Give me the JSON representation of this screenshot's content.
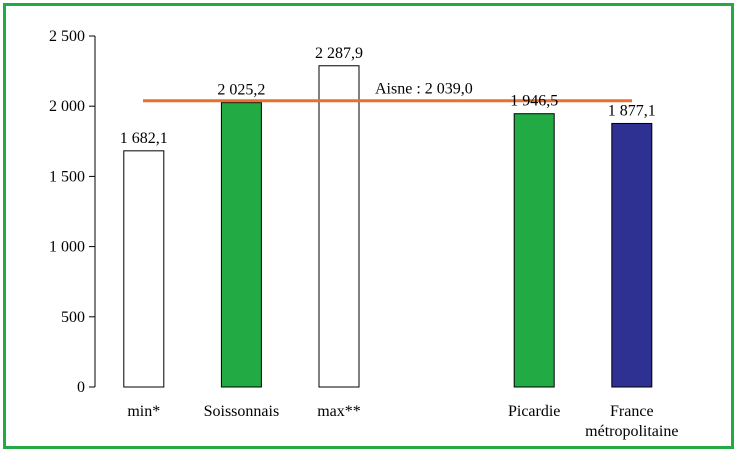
{
  "chart_data": {
    "type": "bar",
    "categories": [
      [
        "min*"
      ],
      [
        "Soissonnais"
      ],
      [
        "max**"
      ],
      [],
      [
        "Picardie"
      ],
      [
        "France",
        "métropolitaine"
      ]
    ],
    "values": [
      1682.1,
      2025.2,
      2287.9,
      null,
      1946.5,
      1877.1
    ],
    "value_labels": [
      "1 682,1",
      "2 025,2",
      "2 287,9",
      "",
      "1 946,5",
      "1 877,1"
    ],
    "bar_colors": [
      "#ffffff",
      "#22aa44",
      "#ffffff",
      null,
      "#22aa44",
      "#2e3192"
    ],
    "reference_line": {
      "value": 2039.0,
      "label": "Aisne : 2 039,0",
      "color": "#e8702a"
    },
    "y_ticks": [
      {
        "value": 0,
        "label": "0"
      },
      {
        "value": 500,
        "label": "500"
      },
      {
        "value": 1000,
        "label": "1 000"
      },
      {
        "value": 1500,
        "label": "1 500"
      },
      {
        "value": 2000,
        "label": "2 000"
      },
      {
        "value": 2500,
        "label": "2 500"
      }
    ],
    "ylim": [
      0,
      2500
    ],
    "grid": false,
    "frame_color": "#22aa44"
  }
}
